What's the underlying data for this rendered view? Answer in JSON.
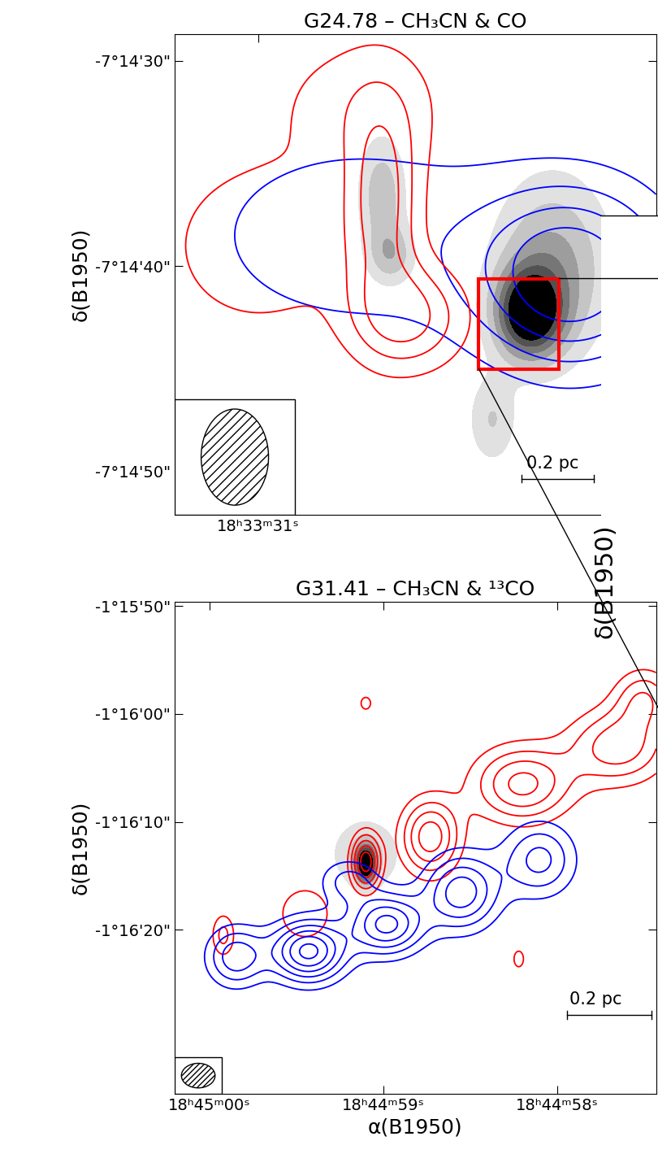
{
  "chart_data": [
    {
      "type": "contour",
      "title": "G24.78 – CH₃CN & CO",
      "y_label": "δ(B1950)",
      "xlim": [
        31.25,
        29.81
      ],
      "ylim": [
        -52.1,
        -28.7
      ],
      "xticks": [
        {
          "value": 31,
          "label": "18ʰ33ᵐ31ˢ"
        }
      ],
      "yticks": [
        {
          "value": -30,
          "label": "-7°14'30\""
        },
        {
          "value": -40,
          "label": "-7°14'40\""
        },
        {
          "value": -50,
          "label": "-7°14'50\""
        }
      ],
      "scale_bar": "0.2 pc",
      "zoom_box": {
        "x": [
          30.34,
          30.1
        ],
        "y": [
          -45.0,
          -40.6
        ]
      },
      "series": [
        {
          "type": "filled_contour",
          "levels": [
            0.15,
            0.3,
            0.45,
            0.6,
            0.75,
            0.9
          ],
          "components": [
            {
              "x": 30.19,
              "y": -42.3,
              "amp": 1.0,
              "sx": 0.07,
              "sy": 1.5
            },
            {
              "x": 30.12,
              "y": -40.0,
              "amp": 0.5,
              "sx": 0.12,
              "sy": 3.0
            },
            {
              "x": 30.63,
              "y": -36.5,
              "amp": 0.4,
              "sx": 0.05,
              "sy": 2.0
            },
            {
              "x": 30.6,
              "y": -39.5,
              "amp": 0.35,
              "sx": 0.05,
              "sy": 1.0
            },
            {
              "x": 30.3,
              "y": -47.5,
              "amp": 0.3,
              "sx": 0.05,
              "sy": 1.5
            }
          ]
        },
        {
          "type": "contour",
          "color": "blue",
          "levels": [
            0.2,
            0.4,
            0.6,
            0.8
          ],
          "components": [
            {
              "x": 30.06,
              "y": -40.5,
              "amp": 1.0,
              "sx": 0.2,
              "sy": 3.0
            },
            {
              "x": 30.7,
              "y": -38.5,
              "amp": 0.35,
              "sx": 0.35,
              "sy": 3.5
            }
          ]
        },
        {
          "type": "contour",
          "color": "red",
          "levels": [
            0.25,
            0.5,
            0.75
          ],
          "components": [
            {
              "x": 30.63,
              "y": -37.0,
              "amp": 0.8,
              "sx": 0.08,
              "sy": 3.5
            },
            {
              "x": 30.55,
              "y": -42.5,
              "amp": 0.8,
              "sx": 0.12,
              "sy": 1.8
            },
            {
              "x": 31.0,
              "y": -39.0,
              "amp": 0.45,
              "sx": 0.2,
              "sy": 3.0
            },
            {
              "x": 30.7,
              "y": -32.0,
              "amp": 0.35,
              "sx": 0.2,
              "sy": 2.5
            }
          ]
        }
      ]
    },
    {
      "type": "contour",
      "title": "G31.41 – CH₃CN & ¹³CO",
      "y_label": "δ(B1950)",
      "x_label": "α(B1950)",
      "xlim": [
        60.2,
        57.43
      ],
      "ylim": [
        -95.2,
        -49.6
      ],
      "xticks": [
        {
          "value": 60,
          "label": "18ʰ45ᵐ00ˢ"
        },
        {
          "value": 59,
          "label": "18ʰ44ᵐ59ˢ"
        },
        {
          "value": 58,
          "label": "18ʰ44ᵐ58ˢ"
        }
      ],
      "yticks": [
        {
          "value": -50,
          "label": "-1°15'50\""
        },
        {
          "value": -60,
          "label": "-1°16'00\""
        },
        {
          "value": -70,
          "label": "-1°16'10\""
        },
        {
          "value": -80,
          "label": "-1°16'20\""
        }
      ],
      "scale_bar": "0.2 pc",
      "inset_label": "δ(B1950)",
      "series": [
        {
          "type": "filled_contour",
          "levels": [
            0.15,
            0.3,
            0.45,
            0.6,
            0.75,
            0.9
          ],
          "components": [
            {
              "x": 59.1,
              "y": -73.9,
              "amp": 1.0,
              "sx": 0.04,
              "sy": 1.2
            },
            {
              "x": 59.1,
              "y": -73.0,
              "amp": 0.3,
              "sx": 0.15,
              "sy": 2.5
            }
          ]
        },
        {
          "type": "contour",
          "color": "red",
          "levels": [
            0.2,
            0.35,
            0.5,
            0.65,
            0.8,
            0.95
          ],
          "components": [
            {
              "x": 59.1,
              "y": -73.7,
              "amp": 0.9,
              "sx": 0.06,
              "sy": 1.8
            },
            {
              "x": 58.73,
              "y": -71.4,
              "amp": 0.75,
              "sx": 0.12,
              "sy": 2.5
            },
            {
              "x": 58.2,
              "y": -66.5,
              "amp": 0.7,
              "sx": 0.2,
              "sy": 2.5
            },
            {
              "x": 57.65,
              "y": -63.0,
              "amp": 0.6,
              "sx": 0.2,
              "sy": 2.5
            },
            {
              "x": 57.5,
              "y": -58.5,
              "amp": 0.45,
              "sx": 0.12,
              "sy": 2.0
            },
            {
              "x": 59.92,
              "y": -80.5,
              "amp": 0.4,
              "sx": 0.05,
              "sy": 1.5
            },
            {
              "x": 59.45,
              "y": -78.5,
              "amp": 0.35,
              "sx": 0.12,
              "sy": 2.0
            },
            {
              "x": 59.1,
              "y": -59.0,
              "amp": 0.3,
              "sx": 0.03,
              "sy": 0.6
            },
            {
              "x": 58.22,
              "y": -82.7,
              "amp": 0.3,
              "sx": 0.03,
              "sy": 0.8
            }
          ]
        },
        {
          "type": "contour",
          "color": "blue",
          "levels": [
            0.2,
            0.35,
            0.5,
            0.65,
            0.8,
            0.95
          ],
          "components": [
            {
              "x": 59.43,
              "y": -82.0,
              "amp": 1.0,
              "sx": 0.15,
              "sy": 2.0
            },
            {
              "x": 58.98,
              "y": -79.5,
              "amp": 0.85,
              "sx": 0.15,
              "sy": 2.0
            },
            {
              "x": 58.55,
              "y": -76.5,
              "amp": 0.75,
              "sx": 0.15,
              "sy": 2.5
            },
            {
              "x": 58.1,
              "y": -73.5,
              "amp": 0.55,
              "sx": 0.15,
              "sy": 2.5
            },
            {
              "x": 59.85,
              "y": -82.5,
              "amp": 0.6,
              "sx": 0.12,
              "sy": 2.0
            },
            {
              "x": 59.2,
              "y": -75.5,
              "amp": 0.4,
              "sx": 0.12,
              "sy": 1.5
            }
          ]
        }
      ]
    }
  ]
}
